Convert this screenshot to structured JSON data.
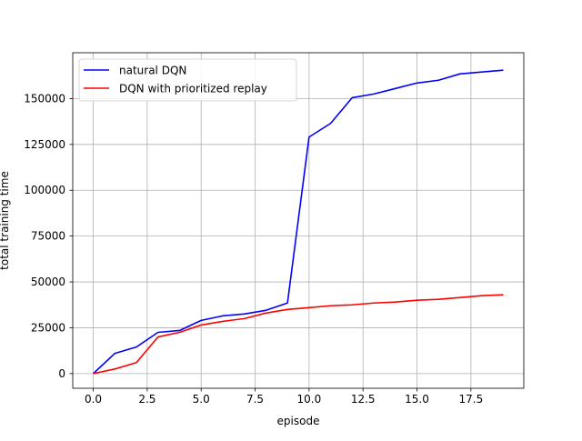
{
  "chart_data": {
    "type": "line",
    "title": "",
    "xlabel": "episode",
    "ylabel": "total training time",
    "xlim": [
      -0.95,
      19.95
    ],
    "ylim": [
      -8000,
      175000
    ],
    "grid": true,
    "legend_position": "upper-left",
    "xticks": [
      0.0,
      2.5,
      5.0,
      7.5,
      10.0,
      12.5,
      15.0,
      17.5
    ],
    "xtick_labels": [
      "0.0",
      "2.5",
      "5.0",
      "7.5",
      "10.0",
      "12.5",
      "15.0",
      "17.5"
    ],
    "yticks": [
      0,
      25000,
      50000,
      75000,
      100000,
      125000,
      150000
    ],
    "ytick_labels": [
      "0",
      "25000",
      "50000",
      "75000",
      "100000",
      "125000",
      "150000"
    ],
    "x": [
      0,
      1,
      2,
      3,
      4,
      5,
      6,
      7,
      8,
      9,
      10,
      11,
      12,
      13,
      14,
      15,
      16,
      17,
      18,
      19
    ],
    "series": [
      {
        "name": "natural DQN",
        "color": "#0000ff",
        "values": [
          0,
          11000,
          14500,
          22500,
          23500,
          29000,
          31500,
          32500,
          34500,
          38500,
          129000,
          136500,
          150500,
          152500,
          155500,
          158500,
          160000,
          163500,
          164500,
          165500
        ]
      },
      {
        "name": "DQN with prioritized replay",
        "color": "#ff0000",
        "values": [
          0,
          2500,
          6000,
          20000,
          22500,
          26500,
          28500,
          30000,
          33000,
          35000,
          36000,
          37000,
          37500,
          38500,
          39000,
          40000,
          40500,
          41500,
          42500,
          43000
        ]
      }
    ]
  }
}
